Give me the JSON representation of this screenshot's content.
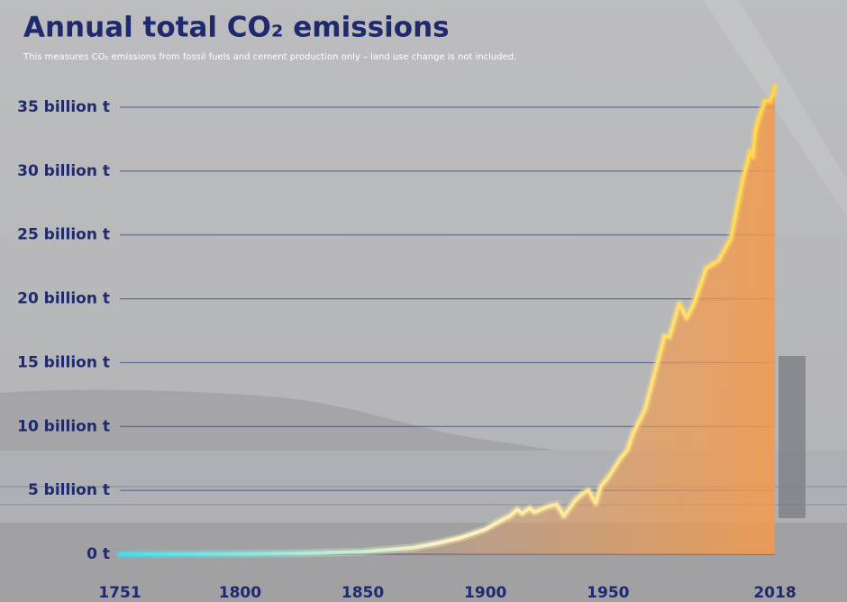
{
  "chart_data": {
    "type": "line",
    "title": "Annual total CO₂ emissions",
    "subtitle": "This measures CO₂ emissions from fossil fuels and cement production only – land use change is not included.",
    "x": [
      1751,
      1800,
      1830,
      1850,
      1860,
      1870,
      1880,
      1890,
      1900,
      1905,
      1910,
      1913,
      1915,
      1918,
      1920,
      1925,
      1929,
      1932,
      1937,
      1940,
      1942,
      1945,
      1947,
      1950,
      1955,
      1958,
      1960,
      1965,
      1970,
      1973,
      1975,
      1979,
      1982,
      1985,
      1990,
      1995,
      2000,
      2005,
      2008,
      2009,
      2010,
      2012,
      2014,
      2016,
      2017,
      2018
    ],
    "values": [
      0.01,
      0.03,
      0.1,
      0.2,
      0.35,
      0.5,
      0.85,
      1.3,
      1.95,
      2.5,
      3.0,
      3.5,
      3.2,
      3.6,
      3.3,
      3.7,
      3.9,
      3.0,
      4.3,
      4.8,
      5.0,
      4.0,
      5.3,
      6.0,
      7.5,
      8.2,
      9.4,
      11.3,
      14.9,
      17.1,
      17.0,
      19.6,
      18.5,
      19.6,
      22.4,
      23.0,
      24.7,
      29.4,
      31.6,
      31.1,
      33.1,
      34.5,
      35.5,
      35.5,
      35.9,
      36.6
    ],
    "line_gradient": [
      "#3fe0ef",
      "#fff4c4",
      "#ffd54a"
    ],
    "area_color": "#f59a4a",
    "xlim": [
      1751,
      2018
    ],
    "xticks": [
      1751,
      1800,
      1850,
      1900,
      1950,
      2018
    ],
    "ylim": [
      0,
      35
    ],
    "yticks": [
      {
        "value": 0,
        "label": "0 t"
      },
      {
        "value": 5,
        "label": "5 billion t"
      },
      {
        "value": 10,
        "label": "10 billion t"
      },
      {
        "value": 15,
        "label": "15 billion t"
      },
      {
        "value": 20,
        "label": "20 billion t"
      },
      {
        "value": 25,
        "label": "25 billion t"
      },
      {
        "value": 30,
        "label": "30 billion t"
      },
      {
        "value": 35,
        "label": "35 billion t"
      }
    ],
    "grid": true
  }
}
